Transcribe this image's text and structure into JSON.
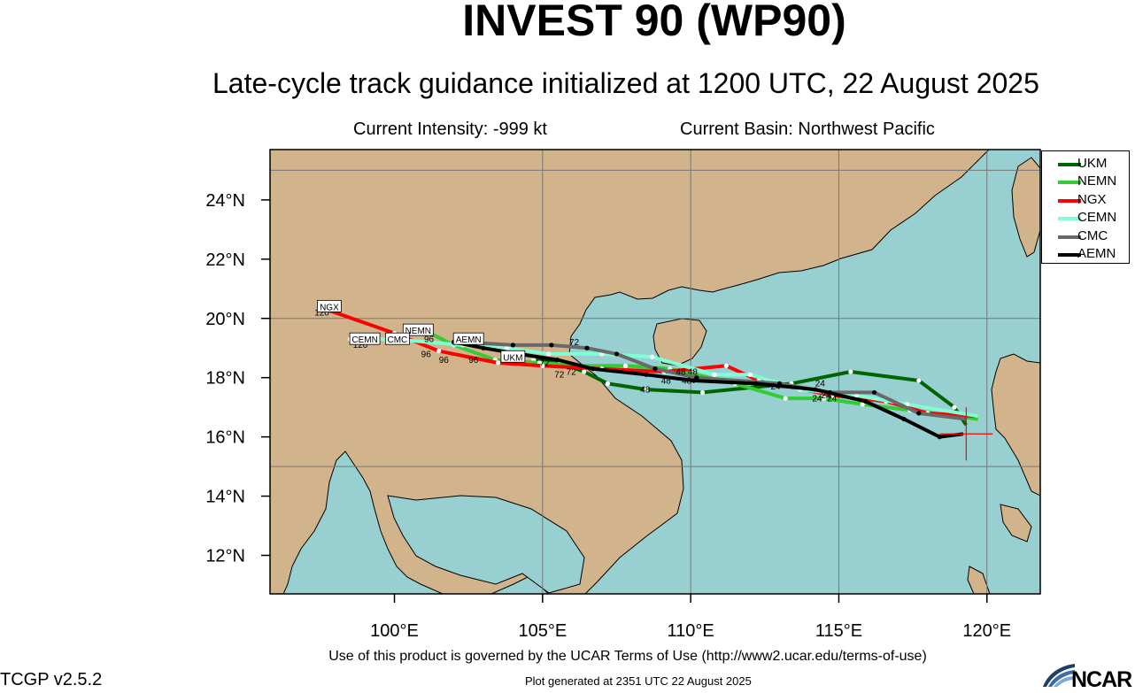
{
  "title": "INVEST 90 (WP90)",
  "subtitle": "Late-cycle track guidance initialized at 1200 UTC, 22 August 2025",
  "info": {
    "intensity": "Current Intensity: -999 kt",
    "basin": "Current Basin: Northwest Pacific"
  },
  "footer": {
    "terms": "Use of this product is governed by the UCAR Terms of Use (http://www2.ucar.edu/terms-of-use)",
    "version": "TCGP v2.5.2",
    "generated": "Plot generated at 2351 UTC   22 August 2025",
    "logo_text": "NCAR"
  },
  "colors": {
    "ocean": "#98cfd0",
    "land": "#d2b48c",
    "UKM": "#006400",
    "NEMN": "#32cd32",
    "NGX": "#ff0000",
    "CEMN": "#7fffd4",
    "CMC": "#696969",
    "AEMN": "#000000",
    "logo": "#1e3f6e"
  },
  "chart_data": {
    "type": "map-track",
    "xlim": [
      95.8,
      121.8
    ],
    "ylim": [
      10.7,
      25.7
    ],
    "x_ticks": [
      100,
      105,
      110,
      115,
      120
    ],
    "x_tick_labels": [
      "100°E",
      "105°E",
      "110°E",
      "115°E",
      "120°E"
    ],
    "y_ticks": [
      12,
      14,
      16,
      18,
      20,
      22,
      24
    ],
    "y_tick_labels": [
      "12°N",
      "14°N",
      "16°N",
      "18°N",
      "20°N",
      "22°N",
      "24°N"
    ],
    "grid_lines": {
      "lon": [
        105,
        110,
        115,
        120
      ],
      "lat": [
        15,
        20,
        25
      ]
    },
    "current_position": [
      119.3,
      16.1
    ],
    "legend_position": "top-right-outside",
    "series": [
      {
        "name": "UKM",
        "points": [
          [
            119.3,
            16.4
          ],
          [
            118.9,
            17.0
          ],
          [
            117.7,
            17.9
          ],
          [
            115.4,
            18.2
          ],
          [
            113.4,
            17.8
          ],
          [
            110.4,
            17.5
          ],
          [
            108.5,
            17.6
          ],
          [
            107.2,
            17.8
          ],
          [
            106.4,
            18.2
          ],
          [
            105.6,
            18.5
          ],
          [
            104.7,
            18.6
          ]
        ]
      },
      {
        "name": "NEMN",
        "points": [
          [
            119.7,
            16.6
          ],
          [
            117.4,
            16.9
          ],
          [
            115.8,
            17.1
          ],
          [
            114.5,
            17.3
          ],
          [
            113.2,
            17.3
          ],
          [
            111.5,
            17.8
          ],
          [
            109.3,
            18.3
          ],
          [
            107.8,
            18.4
          ],
          [
            106.2,
            18.4
          ],
          [
            104.9,
            18.5
          ],
          [
            103.4,
            18.6
          ],
          [
            102.0,
            19.1
          ],
          [
            101.0,
            19.6
          ]
        ]
      },
      {
        "name": "NGX",
        "points": [
          [
            119.6,
            16.7
          ],
          [
            118.0,
            16.8
          ],
          [
            116.6,
            17.2
          ],
          [
            114.8,
            17.4
          ],
          [
            112.3,
            17.9
          ],
          [
            111.2,
            18.4
          ],
          [
            109.1,
            18.2
          ],
          [
            107.0,
            18.3
          ],
          [
            105.0,
            18.4
          ],
          [
            103.5,
            18.5
          ],
          [
            101.5,
            18.9
          ],
          [
            100.0,
            19.5
          ],
          [
            97.7,
            20.3
          ]
        ]
      },
      {
        "name": "CEMN",
        "points": [
          [
            119.7,
            16.7
          ],
          [
            117.3,
            17.1
          ],
          [
            115.6,
            17.4
          ],
          [
            113.7,
            17.6
          ],
          [
            112.0,
            18.1
          ],
          [
            110.8,
            18.1
          ],
          [
            108.7,
            18.7
          ],
          [
            107.0,
            18.8
          ],
          [
            105.2,
            18.8
          ],
          [
            103.8,
            19.0
          ],
          [
            102.3,
            19.1
          ],
          [
            100.0,
            19.3
          ],
          [
            98.5,
            19.3
          ]
        ]
      },
      {
        "name": "CMC",
        "points": [
          [
            119.3,
            16.6
          ],
          [
            117.7,
            16.8
          ],
          [
            116.2,
            17.5
          ],
          [
            114.7,
            17.5
          ],
          [
            113.0,
            17.8
          ],
          [
            110.2,
            18.0
          ],
          [
            108.8,
            18.3
          ],
          [
            107.5,
            18.8
          ],
          [
            106.5,
            19.0
          ],
          [
            105.3,
            19.1
          ],
          [
            104.0,
            19.1
          ],
          [
            102.3,
            19.2
          ]
        ]
      },
      {
        "name": "AEMN",
        "points": [
          [
            119.2,
            16.1
          ],
          [
            118.4,
            16.0
          ],
          [
            117.2,
            16.6
          ],
          [
            115.9,
            17.2
          ],
          [
            114.2,
            17.6
          ],
          [
            112.2,
            17.8
          ],
          [
            110.1,
            17.9
          ],
          [
            108.5,
            18.1
          ],
          [
            106.7,
            18.3
          ],
          [
            105.5,
            18.6
          ],
          [
            104.2,
            18.8
          ],
          [
            103.0,
            19.0
          ],
          [
            102.0,
            19.2
          ]
        ]
      }
    ],
    "end_labels": [
      {
        "text": "NGX",
        "lon": 97.8,
        "lat": 20.4
      },
      {
        "text": "NEMN",
        "lon": 100.8,
        "lat": 19.6
      },
      {
        "text": "CEMN",
        "lon": 99.0,
        "lat": 19.3
      },
      {
        "text": "CMC",
        "lon": 100.1,
        "lat": 19.3
      },
      {
        "text": "AEMN",
        "lon": 102.5,
        "lat": 19.3
      },
      {
        "text": "UKM",
        "lon": 104.0,
        "lat": 18.7
      }
    ],
    "hour_labels": [
      {
        "text": "120",
        "lon": 97.3,
        "lat": 20.1
      },
      {
        "text": "120",
        "lon": 98.6,
        "lat": 19.0
      },
      {
        "text": "96",
        "lon": 101.0,
        "lat": 19.2
      },
      {
        "text": "96",
        "lon": 100.9,
        "lat": 18.7
      },
      {
        "text": "96",
        "lon": 101.5,
        "lat": 18.5
      },
      {
        "text": "96",
        "lon": 102.2,
        "lat": 19.2
      },
      {
        "text": "96",
        "lon": 102.5,
        "lat": 18.5
      },
      {
        "text": "72",
        "lon": 104.9,
        "lat": 18.4
      },
      {
        "text": "72",
        "lon": 105.4,
        "lat": 18.0
      },
      {
        "text": "72",
        "lon": 105.8,
        "lat": 18.1
      },
      {
        "text": "72",
        "lon": 105.9,
        "lat": 19.1
      },
      {
        "text": "48",
        "lon": 108.3,
        "lat": 17.5
      },
      {
        "text": "48",
        "lon": 109.0,
        "lat": 17.8
      },
      {
        "text": "48",
        "lon": 109.5,
        "lat": 18.1
      },
      {
        "text": "48",
        "lon": 109.7,
        "lat": 17.8
      },
      {
        "text": "48",
        "lon": 109.9,
        "lat": 18.1
      },
      {
        "text": "24",
        "lon": 112.7,
        "lat": 17.6
      },
      {
        "text": "24",
        "lon": 114.2,
        "lat": 17.7
      },
      {
        "text": "24",
        "lon": 114.1,
        "lat": 17.2
      },
      {
        "text": "24",
        "lon": 114.6,
        "lat": 17.2
      },
      {
        "text": "24",
        "lon": 114.4,
        "lat": 17.3
      }
    ]
  }
}
